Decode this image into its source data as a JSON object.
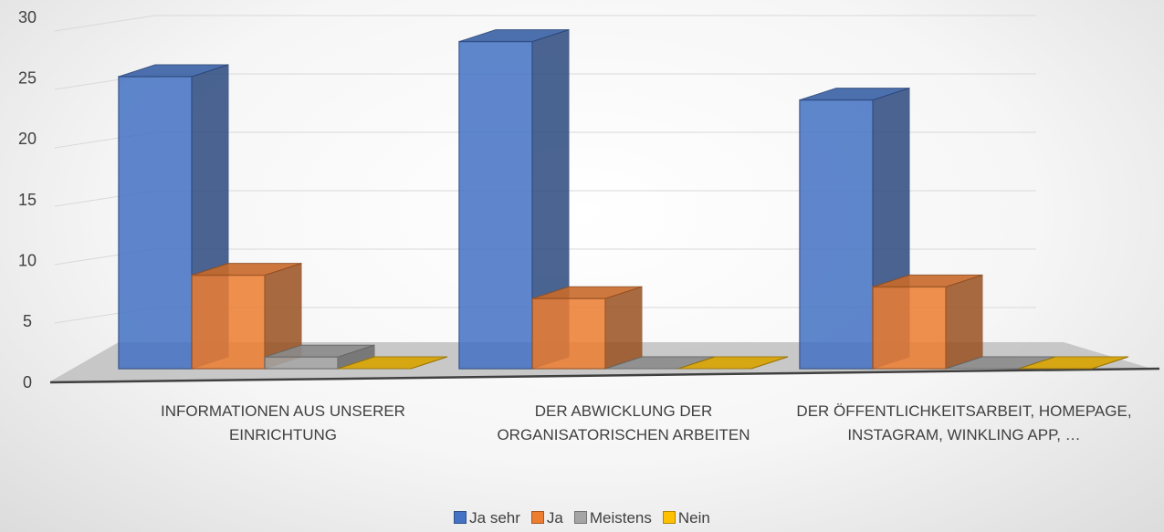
{
  "chart_data": {
    "type": "bar3d",
    "categories": [
      "INFORMATIONEN AUS UNSERER EINRICHTUNG",
      "DER ABWICKLUNG DER ORGANISATORISCHEN ARBEITEN",
      "DER ÖFFENTLICHKEITSARBEIT, HOMEPAGE, INSTAGRAM, WINKLING APP, …"
    ],
    "series": [
      {
        "name": "Ja sehr",
        "color": "#4472c4",
        "values": [
          25,
          28,
          23
        ]
      },
      {
        "name": "Ja",
        "color": "#ed7d31",
        "values": [
          8,
          6,
          7
        ]
      },
      {
        "name": "Meistens",
        "color": "#a5a5a5",
        "values": [
          1,
          0,
          0
        ]
      },
      {
        "name": "Nein",
        "color": "#ffc000",
        "values": [
          0,
          0,
          0
        ]
      }
    ],
    "ylim": [
      0,
      30
    ],
    "yticks": [
      0,
      5,
      10,
      15,
      20,
      25,
      30
    ],
    "grid": true,
    "legend": "bottom"
  }
}
